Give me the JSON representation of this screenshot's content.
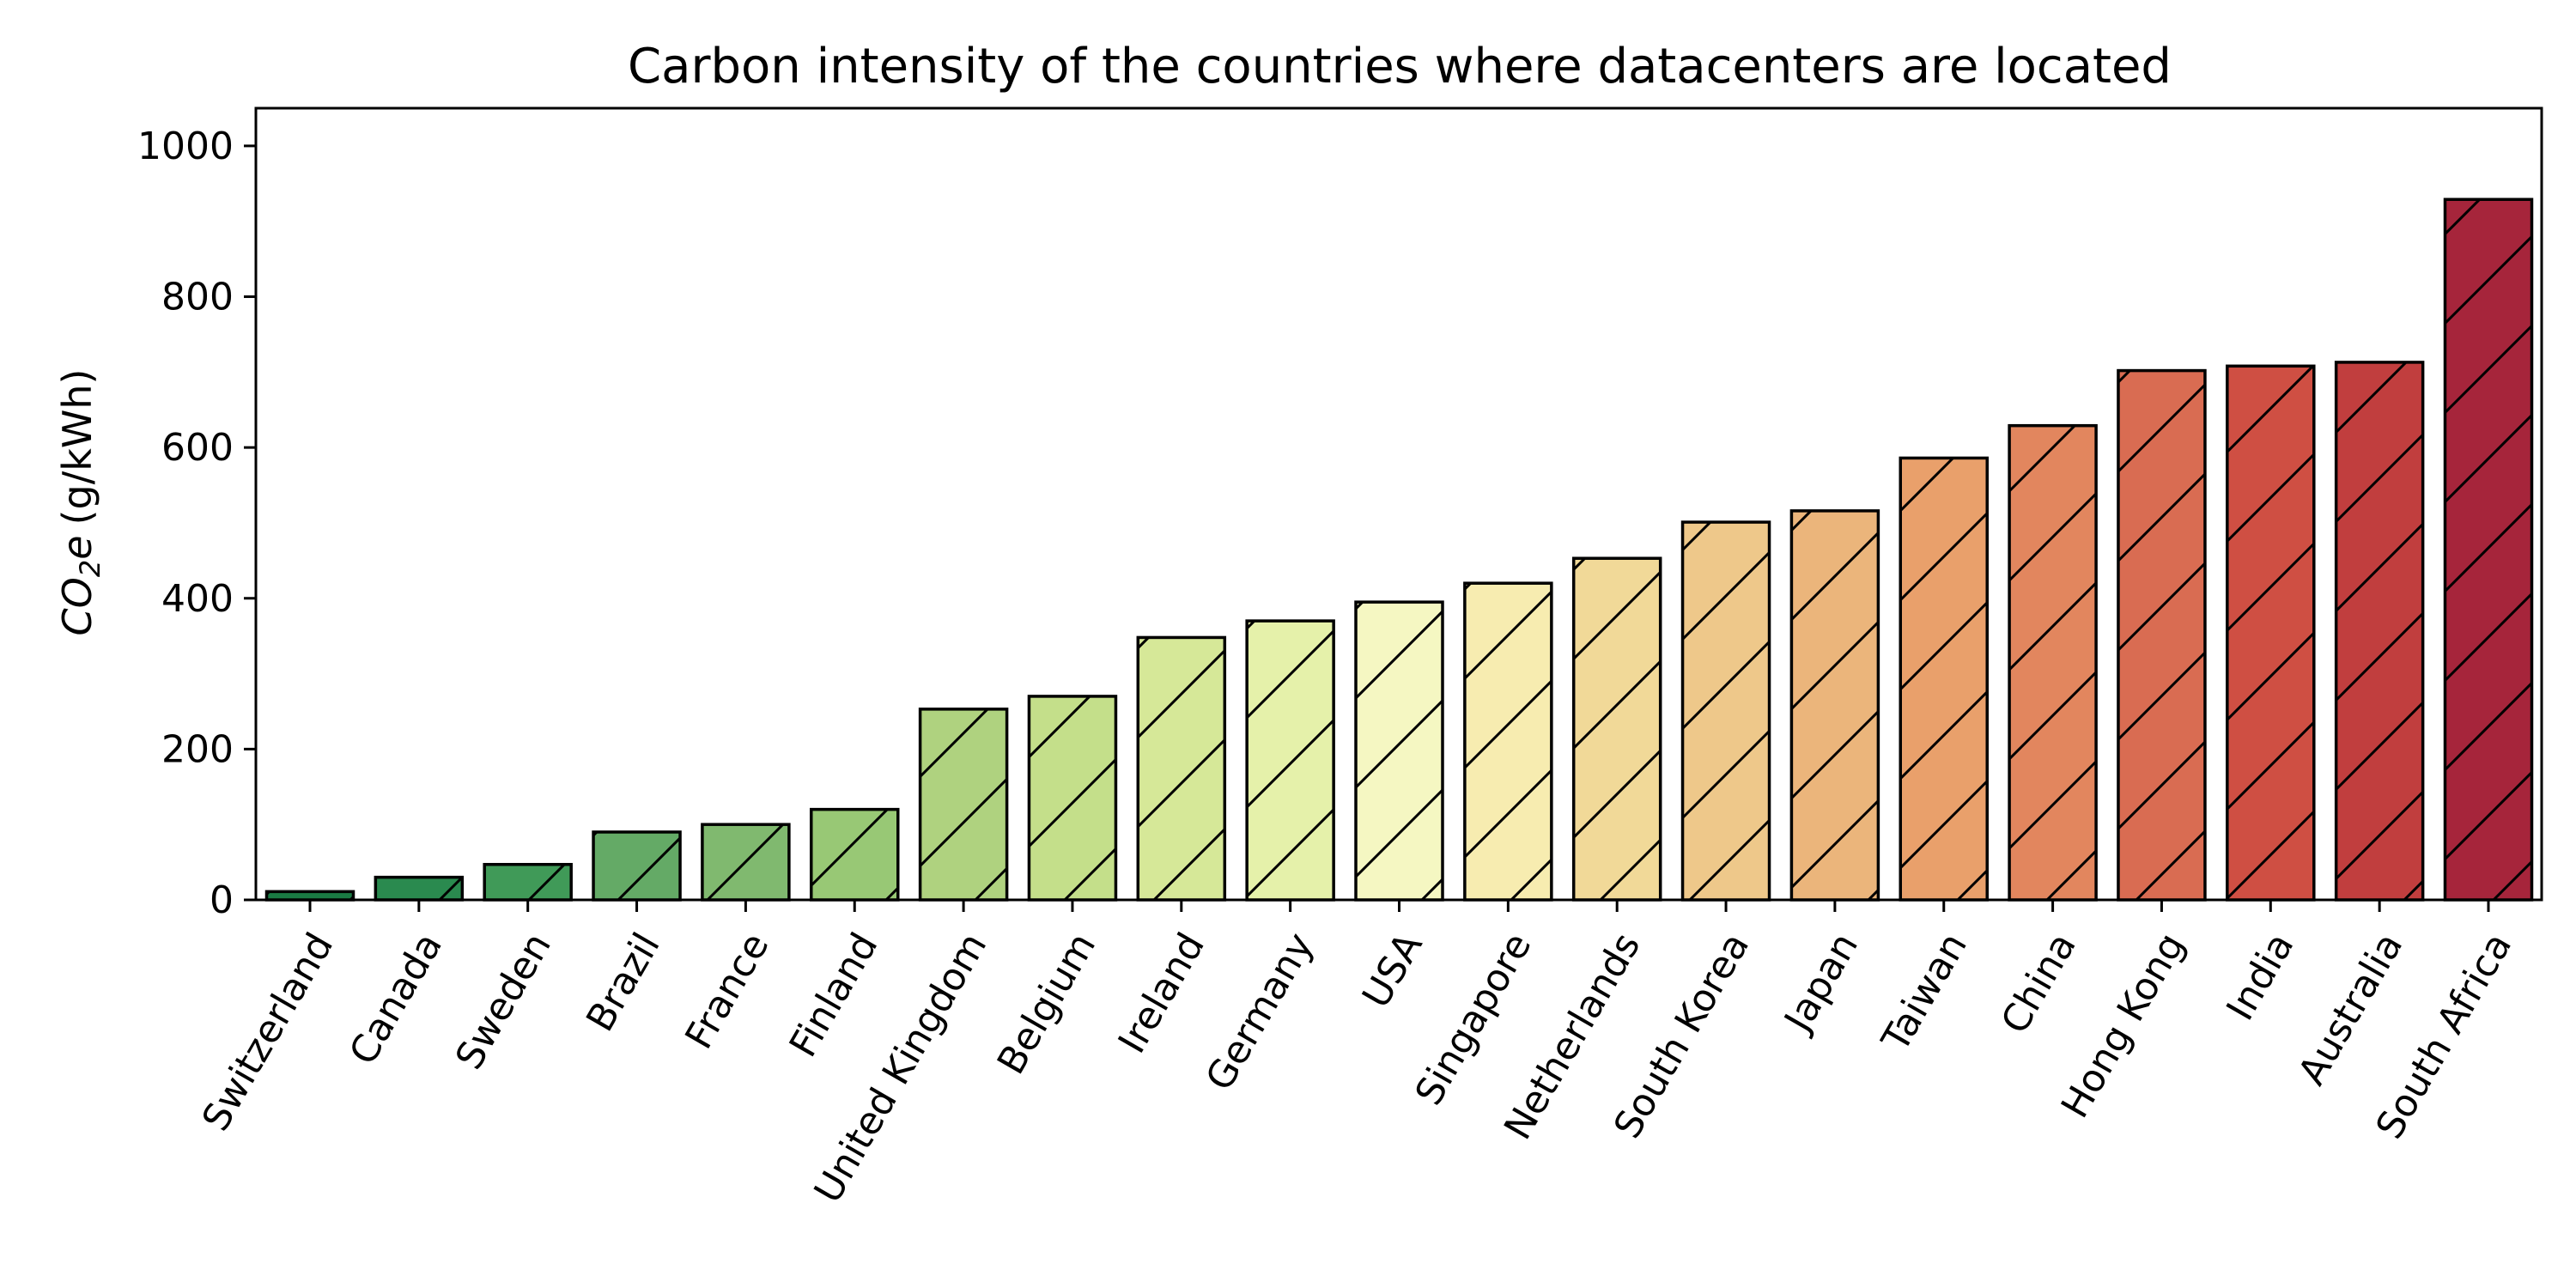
{
  "chart_data": {
    "type": "bar",
    "title": "Carbon intensity of the countries where datacenters are located",
    "xlabel": "",
    "ylabel": {
      "symbol": "CO",
      "subscript": "2",
      "symbol_suffix": "e",
      "units": "(g/kWh)"
    },
    "categories": [
      "Switzerland",
      "Canada",
      "Sweden",
      "Brazil",
      "France",
      "Finland",
      "United Kingdom",
      "Belgium",
      "Ireland",
      "Germany",
      "USA",
      "Singapore",
      "Netherlands",
      "South Korea",
      "Japan",
      "Taiwan",
      "China",
      "Hong Kong",
      "India",
      "Australia",
      "South Africa"
    ],
    "values": [
      11,
      30,
      47,
      90,
      100,
      120,
      253,
      270,
      348,
      370,
      395,
      420,
      453,
      501,
      516,
      586,
      629,
      702,
      708,
      713,
      929
    ],
    "colors": [
      "#1a7a43",
      "#2a8a4f",
      "#409a58",
      "#64aa66",
      "#80b96f",
      "#98c875",
      "#afd27f",
      "#c4df8a",
      "#d6e898",
      "#e5f1aa",
      "#f5f7c2",
      "#f7ecb0",
      "#f1d998",
      "#eec88a",
      "#ebb57b",
      "#e9a06b",
      "#e2865e",
      "#d96c52",
      "#cf4f43",
      "#c13e3e",
      "#a6253b"
    ],
    "yticks": [
      0,
      200,
      400,
      600,
      800,
      1000
    ],
    "ylim": [
      0,
      1050
    ],
    "grid": false,
    "hatch": "forward-diagonal"
  }
}
